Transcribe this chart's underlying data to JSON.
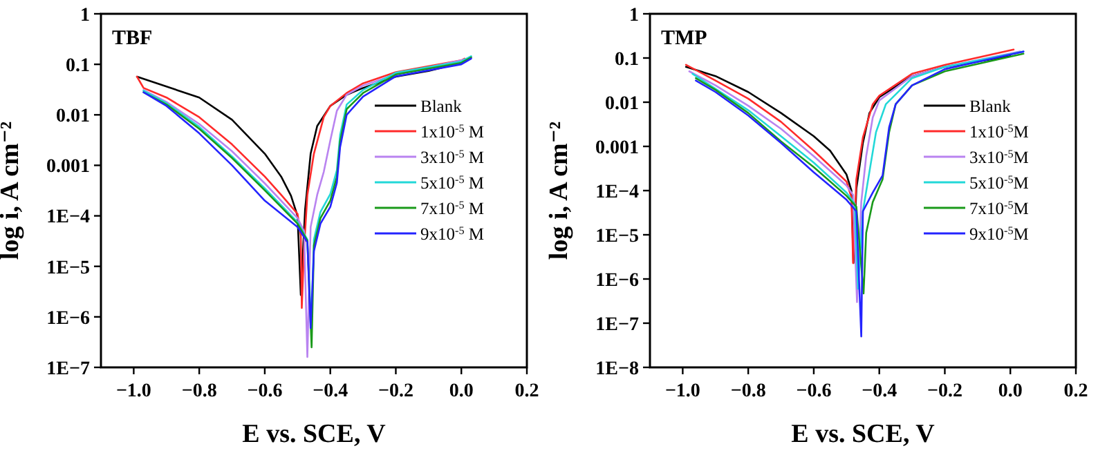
{
  "chart_data": [
    {
      "type": "line",
      "title": "TBF",
      "xlabel": "E vs. SCE, V",
      "ylabel": "log i, A cm⁻²",
      "log": "y",
      "legend": "right",
      "line_style": "solid",
      "xlim": [
        -1.1,
        0.2
      ],
      "xticks": [
        {
          "value": -1.0,
          "label": "−1.0"
        },
        {
          "value": -0.8,
          "label": "−0.8"
        },
        {
          "value": -0.6,
          "label": "−0.6"
        },
        {
          "value": -0.4,
          "label": "−0.4"
        },
        {
          "value": -0.2,
          "label": "−0.2"
        },
        {
          "value": 0,
          "label": "0.0"
        },
        {
          "value": 0.2,
          "label": "0.2"
        }
      ],
      "ylim": [
        1e-07,
        1
      ],
      "yticks": [
        {
          "value": 1e-07,
          "label": "1E−7"
        },
        {
          "value": 1e-06,
          "label": "1E−6"
        },
        {
          "value": 1e-05,
          "label": "1E−5"
        },
        {
          "value": 0.0001,
          "label": "1E−4"
        },
        0.001,
        0.01,
        0.1,
        1
      ],
      "series": [
        {
          "name": "Blank",
          "color": "#000000",
          "x": [
            -0.99,
            -0.8,
            -0.7,
            -0.6,
            -0.55,
            -0.52,
            -0.5,
            -0.49,
            -0.477,
            -0.46,
            -0.44,
            -0.4,
            -0.35,
            -0.3,
            -0.2,
            -0.1,
            0.0
          ],
          "values": [
            0.057,
            0.022,
            0.008,
            0.0017,
            0.0006,
            0.00025,
            0.0001,
            2.7e-06,
            0.00013,
            0.0017,
            0.006,
            0.015,
            0.025,
            0.034,
            0.057,
            0.074,
            0.107
          ]
        },
        {
          "name": "1x10$^{-5}$ M",
          "color": "#ff2a2a",
          "x": [
            -0.99,
            -0.97,
            -0.9,
            -0.8,
            -0.7,
            -0.6,
            -0.55,
            -0.5,
            -0.49,
            -0.487,
            -0.48,
            -0.47,
            -0.45,
            -0.42,
            -0.4,
            -0.35,
            -0.3,
            -0.2,
            0.0,
            0.01
          ],
          "values": [
            0.057,
            0.034,
            0.022,
            0.009,
            0.0026,
            0.0006,
            0.00026,
            0.00011,
            4e-05,
            1.5e-06,
            2.3e-05,
            0.00026,
            0.0017,
            0.009,
            0.015,
            0.027,
            0.042,
            0.07,
            0.12,
            0.13
          ]
        },
        {
          "name": "3x10$^{-5}$ M",
          "color": "#b983f0",
          "x": [
            -0.97,
            -0.9,
            -0.8,
            -0.7,
            -0.6,
            -0.5,
            -0.48,
            -0.47,
            -0.46,
            -0.44,
            -0.42,
            -0.4,
            -0.38,
            -0.35,
            -0.3,
            -0.2,
            0.0,
            0.03
          ],
          "values": [
            0.031,
            0.018,
            0.0066,
            0.0019,
            0.00044,
            9e-05,
            5e-05,
            1.6e-07,
            6e-05,
            0.00026,
            0.00074,
            0.0031,
            0.012,
            0.025,
            0.038,
            0.063,
            0.12,
            0.137
          ]
        },
        {
          "name": "5x10$^{-5}$ M",
          "color": "#22d8d8",
          "x": [
            -0.97,
            -0.9,
            -0.8,
            -0.7,
            -0.6,
            -0.5,
            -0.47,
            -0.458,
            -0.45,
            -0.43,
            -0.4,
            -0.38,
            -0.37,
            -0.35,
            -0.3,
            -0.2,
            0.0,
            0.03
          ],
          "values": [
            0.03,
            0.017,
            0.0058,
            0.0015,
            0.00035,
            7.5e-05,
            3.4e-05,
            6e-07,
            3.4e-05,
            0.00012,
            0.00027,
            0.0008,
            0.004,
            0.016,
            0.031,
            0.068,
            0.114,
            0.145
          ]
        },
        {
          "name": "7x10$^{-5}$ M",
          "color": "#1a9a1a",
          "x": [
            -0.97,
            -0.9,
            -0.8,
            -0.7,
            -0.6,
            -0.5,
            -0.47,
            -0.457,
            -0.45,
            -0.43,
            -0.4,
            -0.38,
            -0.37,
            -0.35,
            -0.3,
            -0.2,
            0.0,
            0.03
          ],
          "values": [
            0.028,
            0.016,
            0.0053,
            0.0014,
            0.00032,
            7e-05,
            3.2e-05,
            2.5e-07,
            2.6e-05,
            9e-05,
            0.0002,
            0.00059,
            0.003,
            0.013,
            0.027,
            0.063,
            0.107,
            0.137
          ]
        },
        {
          "name": "9x10$^{-5}$ M",
          "color": "#2424ff",
          "x": [
            -0.97,
            -0.9,
            -0.8,
            -0.7,
            -0.6,
            -0.5,
            -0.47,
            -0.46,
            -0.45,
            -0.43,
            -0.4,
            -0.38,
            -0.37,
            -0.35,
            -0.3,
            -0.2,
            0.0,
            0.03
          ],
          "values": [
            0.028,
            0.015,
            0.0043,
            0.001,
            0.0002,
            6e-05,
            3e-05,
            6e-07,
            2e-05,
            7e-05,
            0.00015,
            0.00045,
            0.0023,
            0.01,
            0.023,
            0.058,
            0.1,
            0.13
          ]
        }
      ]
    },
    {
      "type": "line",
      "title": "TMP",
      "xlabel": "E vs. SCE, V",
      "ylabel": "log i, A cm⁻²",
      "log": "y",
      "legend": "right",
      "line_style": "solid",
      "xlim": [
        -1.1,
        0.2
      ],
      "xticks": [
        {
          "value": -1.0,
          "label": "−1.0"
        },
        {
          "value": -0.8,
          "label": "−0.8"
        },
        {
          "value": -0.6,
          "label": "−0.6"
        },
        {
          "value": -0.4,
          "label": "−0.4"
        },
        {
          "value": -0.2,
          "label": "−0.2"
        },
        {
          "value": 0,
          "label": "0.0"
        },
        {
          "value": 0.2,
          "label": "0.2"
        }
      ],
      "ylim": [
        1e-08,
        1
      ],
      "yticks": [
        {
          "value": 1e-08,
          "label": "1E−8"
        },
        {
          "value": 1e-07,
          "label": "1E−7"
        },
        {
          "value": 1e-06,
          "label": "1E−6"
        },
        {
          "value": 1e-05,
          "label": "1E−5"
        },
        {
          "value": 0.0001,
          "label": "1E−4"
        },
        0.001,
        0.01,
        0.1,
        1
      ],
      "series": [
        {
          "name": "Blank",
          "color": "#000000",
          "x": [
            -0.99,
            -0.9,
            -0.8,
            -0.7,
            -0.6,
            -0.55,
            -0.5,
            -0.485,
            -0.479,
            -0.47,
            -0.45,
            -0.43,
            -0.4,
            -0.3,
            -0.2,
            0.0
          ],
          "values": [
            0.063,
            0.039,
            0.017,
            0.0057,
            0.0017,
            0.0008,
            0.00023,
            0.0001,
            2.3e-06,
            0.00011,
            0.0012,
            0.0057,
            0.013,
            0.039,
            0.063,
            0.11
          ]
        },
        {
          "name": "1x10$^{-5}$M",
          "color": "#ff2a2a",
          "x": [
            -0.99,
            -0.9,
            -0.8,
            -0.7,
            -0.6,
            -0.5,
            -0.485,
            -0.48,
            -0.47,
            -0.45,
            -0.42,
            -0.4,
            -0.3,
            -0.2,
            0.01
          ],
          "values": [
            0.07,
            0.031,
            0.012,
            0.0036,
            0.0008,
            0.00016,
            7e-05,
            2.3e-06,
            0.00018,
            0.0016,
            0.009,
            0.014,
            0.044,
            0.07,
            0.155
          ]
        },
        {
          "name": "3x10$^{-5}$M",
          "color": "#b983f0",
          "x": [
            -0.98,
            -0.9,
            -0.8,
            -0.7,
            -0.6,
            -0.5,
            -0.48,
            -0.468,
            -0.455,
            -0.44,
            -0.42,
            -0.4,
            -0.3,
            -0.2,
            0.03
          ],
          "values": [
            0.05,
            0.024,
            0.0083,
            0.0025,
            0.0006,
            0.00013,
            8e-05,
            3e-07,
            5.5e-05,
            0.0006,
            0.0045,
            0.011,
            0.039,
            0.063,
            0.14
          ]
        },
        {
          "name": "5x10$^{-5}$M",
          "color": "#22d8d8",
          "x": [
            -0.97,
            -0.8,
            -0.7,
            -0.6,
            -0.5,
            -0.475,
            -0.465,
            -0.45,
            -0.43,
            -0.41,
            -0.38,
            -0.3,
            -0.2,
            0.04
          ],
          "values": [
            0.044,
            0.0066,
            0.0017,
            0.00043,
            9e-05,
            5e-05,
            6e-07,
            3.4e-05,
            0.00027,
            0.0021,
            0.009,
            0.035,
            0.063,
            0.14
          ]
        },
        {
          "name": "7x10$^{-5}$M",
          "color": "#1a9a1a",
          "x": [
            -0.96,
            -0.9,
            -0.8,
            -0.7,
            -0.6,
            -0.5,
            -0.47,
            -0.448,
            -0.44,
            -0.42,
            -0.39,
            -0.37,
            -0.35,
            -0.3,
            -0.2,
            0.04
          ],
          "values": [
            0.035,
            0.019,
            0.0057,
            0.0013,
            0.00034,
            7.6e-05,
            4.3e-05,
            4.7e-07,
            1.1e-05,
            5.5e-05,
            0.00018,
            0.0021,
            0.009,
            0.024,
            0.05,
            0.125
          ]
        },
        {
          "name": "9x10$^{-5}$M",
          "color": "#2424ff",
          "x": [
            -0.96,
            -0.9,
            -0.8,
            -0.7,
            -0.6,
            -0.5,
            -0.47,
            -0.455,
            -0.45,
            -0.42,
            -0.39,
            -0.37,
            -0.35,
            -0.3,
            -0.2,
            0.04
          ],
          "values": [
            0.031,
            0.017,
            0.005,
            0.0012,
            0.00026,
            6.2e-05,
            3.4e-05,
            5e-08,
            3.4e-05,
            9e-05,
            0.00022,
            0.0027,
            0.009,
            0.024,
            0.056,
            0.14
          ]
        }
      ]
    }
  ]
}
